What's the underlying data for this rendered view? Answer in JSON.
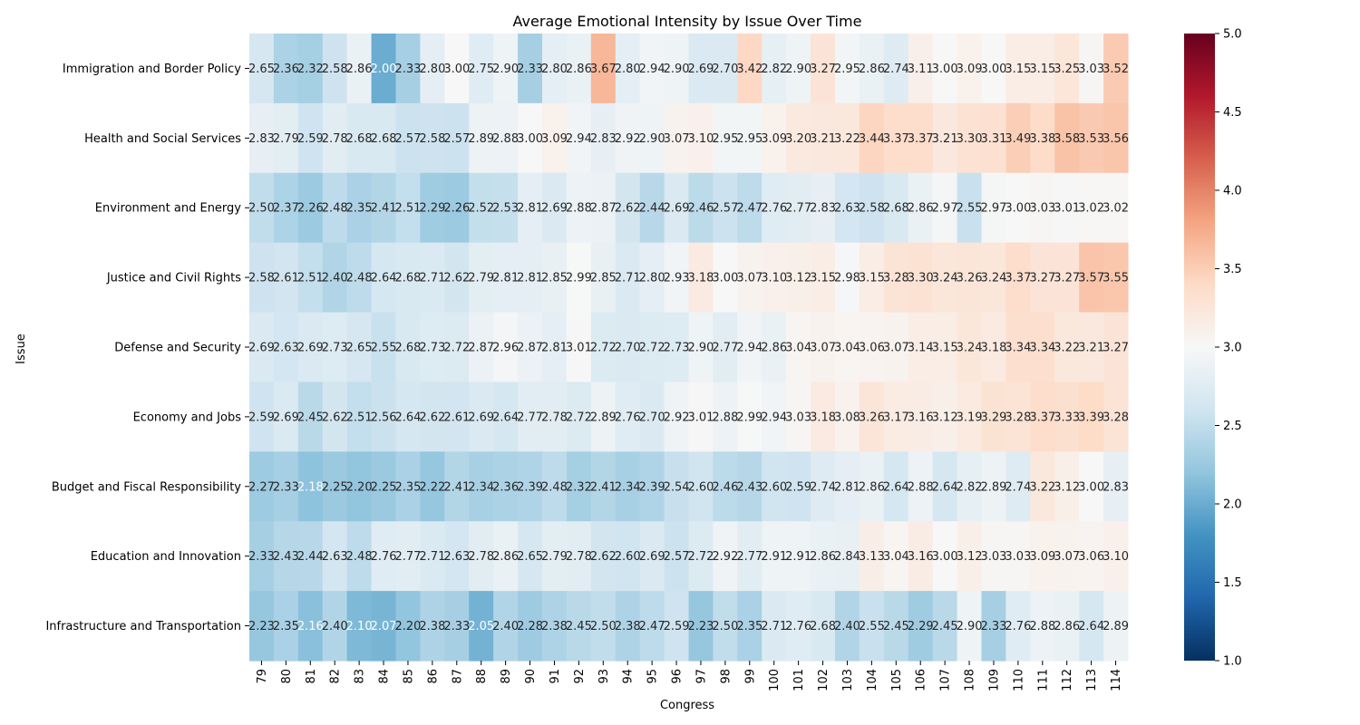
{
  "chart_data": {
    "type": "heatmap",
    "title": "Average Emotional Intensity by Issue Over Time",
    "xlabel": "Congress",
    "ylabel": "Issue",
    "colormap": "RdBu_r",
    "vmin": 1.0,
    "vmax": 5.0,
    "colorbar_ticks": [
      "1.0",
      "1.5",
      "2.0",
      "2.5",
      "3.0",
      "3.5",
      "4.0",
      "4.5",
      "5.0"
    ],
    "columns": [
      "79",
      "80",
      "81",
      "82",
      "83",
      "84",
      "85",
      "86",
      "87",
      "88",
      "89",
      "90",
      "91",
      "92",
      "93",
      "94",
      "95",
      "96",
      "97",
      "98",
      "99",
      "100",
      "101",
      "102",
      "103",
      "104",
      "105",
      "106",
      "107",
      "108",
      "109",
      "110",
      "111",
      "112",
      "113",
      "114"
    ],
    "rows": [
      "Immigration and Border Policy",
      "Health and Social Services",
      "Environment and Energy",
      "Justice and Civil Rights",
      "Defense and Security",
      "Economy and Jobs",
      "Budget and Fiscal Responsibility",
      "Education and Innovation",
      "Infrastructure and Transportation"
    ],
    "values": [
      [
        2.65,
        2.36,
        2.32,
        2.58,
        2.86,
        2.0,
        2.33,
        2.8,
        3.0,
        2.75,
        2.9,
        2.33,
        2.8,
        2.86,
        3.67,
        2.8,
        2.94,
        2.9,
        2.69,
        2.7,
        3.42,
        2.82,
        2.9,
        3.27,
        2.95,
        2.86,
        2.74,
        3.11,
        3.0,
        3.09,
        3.0,
        3.15,
        3.15,
        3.25,
        3.03,
        3.52
      ],
      [
        2.83,
        2.79,
        2.59,
        2.78,
        2.68,
        2.68,
        2.57,
        2.58,
        2.57,
        2.89,
        2.88,
        3.0,
        3.09,
        2.94,
        2.83,
        2.92,
        2.9,
        3.07,
        3.1,
        2.95,
        2.95,
        3.09,
        3.2,
        3.21,
        3.22,
        3.44,
        3.37,
        3.37,
        3.21,
        3.3,
        3.31,
        3.49,
        3.38,
        3.58,
        3.53,
        3.56
      ],
      [
        2.5,
        2.37,
        2.26,
        2.48,
        2.35,
        2.41,
        2.51,
        2.29,
        2.26,
        2.52,
        2.53,
        2.81,
        2.69,
        2.88,
        2.87,
        2.62,
        2.44,
        2.69,
        2.46,
        2.57,
        2.47,
        2.76,
        2.77,
        2.83,
        2.63,
        2.58,
        2.68,
        2.86,
        2.97,
        2.55,
        2.97,
        3.0,
        3.03,
        3.01,
        3.02,
        3.02
      ],
      [
        2.58,
        2.61,
        2.51,
        2.4,
        2.48,
        2.64,
        2.68,
        2.71,
        2.62,
        2.79,
        2.81,
        2.81,
        2.85,
        2.99,
        2.85,
        2.71,
        2.8,
        2.93,
        3.18,
        3.0,
        3.07,
        3.1,
        3.12,
        3.15,
        2.98,
        3.15,
        3.28,
        3.3,
        3.24,
        3.26,
        3.24,
        3.37,
        3.27,
        3.27,
        3.57,
        3.55
      ],
      [
        2.69,
        2.63,
        2.69,
        2.73,
        2.65,
        2.55,
        2.68,
        2.73,
        2.72,
        2.87,
        2.96,
        2.87,
        2.81,
        3.01,
        2.72,
        2.7,
        2.72,
        2.73,
        2.9,
        2.77,
        2.94,
        2.86,
        3.04,
        3.07,
        3.04,
        3.06,
        3.07,
        3.14,
        3.15,
        3.24,
        3.18,
        3.34,
        3.34,
        3.22,
        3.21,
        3.27
      ],
      [
        2.59,
        2.69,
        2.45,
        2.62,
        2.51,
        2.56,
        2.64,
        2.62,
        2.61,
        2.69,
        2.64,
        2.77,
        2.78,
        2.72,
        2.89,
        2.76,
        2.7,
        2.92,
        3.01,
        2.88,
        2.99,
        2.94,
        3.03,
        3.18,
        3.08,
        3.26,
        3.17,
        3.16,
        3.12,
        3.19,
        3.29,
        3.28,
        3.37,
        3.33,
        3.39,
        3.28
      ],
      [
        2.27,
        2.33,
        2.18,
        2.25,
        2.2,
        2.25,
        2.35,
        2.22,
        2.41,
        2.34,
        2.36,
        2.39,
        2.48,
        2.32,
        2.41,
        2.34,
        2.39,
        2.54,
        2.6,
        2.46,
        2.43,
        2.6,
        2.59,
        2.74,
        2.81,
        2.86,
        2.64,
        2.88,
        2.64,
        2.82,
        2.89,
        2.74,
        3.22,
        3.12,
        3.0,
        2.83
      ],
      [
        2.33,
        2.43,
        2.44,
        2.63,
        2.48,
        2.76,
        2.77,
        2.71,
        2.63,
        2.78,
        2.86,
        2.65,
        2.79,
        2.78,
        2.62,
        2.6,
        2.69,
        2.57,
        2.72,
        2.92,
        2.77,
        2.91,
        2.91,
        2.86,
        2.84,
        3.13,
        3.04,
        3.16,
        3.0,
        3.12,
        3.03,
        3.03,
        3.09,
        3.07,
        3.06,
        3.1
      ],
      [
        2.23,
        2.35,
        2.16,
        2.4,
        2.1,
        2.07,
        2.2,
        2.38,
        2.33,
        2.05,
        2.4,
        2.28,
        2.38,
        2.45,
        2.5,
        2.38,
        2.47,
        2.59,
        2.23,
        2.5,
        2.35,
        2.71,
        2.76,
        2.68,
        2.4,
        2.55,
        2.45,
        2.29,
        2.45,
        2.9,
        2.33,
        2.76,
        2.88,
        2.86,
        2.64,
        2.89
      ]
    ]
  }
}
